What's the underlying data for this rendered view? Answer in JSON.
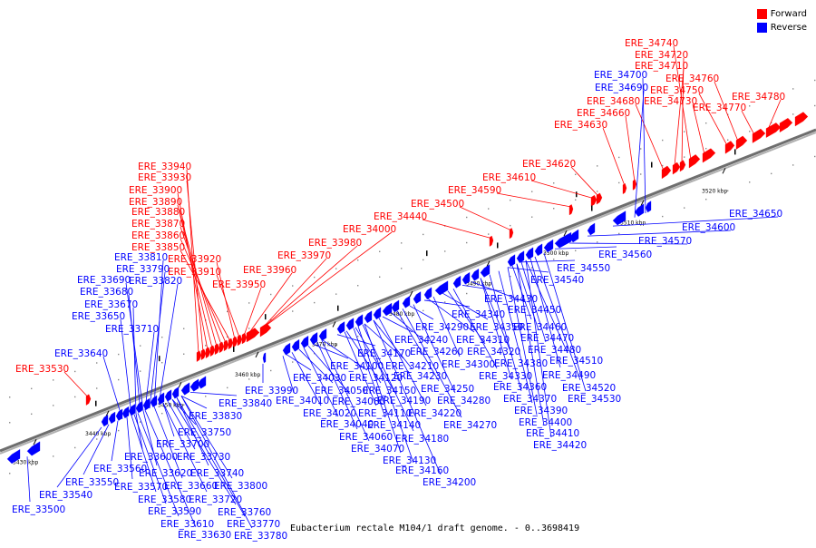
{
  "caption": "Eubacterium rectale M104/1 draft genome. - 0..3698419",
  "legend": [
    {
      "label": "Forward",
      "color": "#ff0000"
    },
    {
      "label": "Reverse",
      "color": "#0000ff"
    }
  ],
  "colors": {
    "forward": "#ff0000",
    "reverse": "#0000ff",
    "forward_leader": "#ff0000",
    "reverse_leader": "#0000ff"
  },
  "ticks": [
    "3430 kbp",
    "3440 kbp",
    "3450 kbp",
    "3460 kbp",
    "3470 kbp",
    "3480 kbp",
    "3490 kbp",
    "3500 kbp",
    "3510 kbp",
    "3520 kbp"
  ],
  "forward_genes": [
    "ERE_33530",
    "ERE_33940",
    "ERE_33930",
    "ERE_33900",
    "ERE_33890",
    "ERE_33880",
    "ERE_33870",
    "ERE_33860",
    "ERE_33850",
    "ERE_33920",
    "ERE_33910",
    "ERE_33950",
    "ERE_33960",
    "ERE_33970",
    "ERE_33980",
    "ERE_34000",
    "ERE_34440",
    "ERE_34500",
    "ERE_34590",
    "ERE_34610",
    "ERE_34620",
    "ERE_34630",
    "ERE_34660",
    "ERE_34680",
    "ERE_34710",
    "ERE_34720",
    "ERE_34740",
    "ERE_34730",
    "ERE_34750",
    "ERE_34760",
    "ERE_34770",
    "ERE_34780"
  ],
  "reverse_genes": [
    "ERE_33640",
    "ERE_33650",
    "ERE_33670",
    "ERE_33680",
    "ERE_33690",
    "ERE_33810",
    "ERE_33790",
    "ERE_33820",
    "ERE_33710",
    "ERE_33840",
    "ERE_33830",
    "ERE_33750",
    "ERE_33700",
    "ERE_33730",
    "ERE_33600",
    "ERE_33560",
    "ERE_33620",
    "ERE_33740",
    "ERE_33550",
    "ERE_33570",
    "ERE_33660",
    "ERE_33800",
    "ERE_33540",
    "ERE_33580",
    "ERE_33720",
    "ERE_33500",
    "ERE_33590",
    "ERE_33760",
    "ERE_33610",
    "ERE_33770",
    "ERE_33630",
    "ERE_33780",
    "ERE_33990",
    "ERE_34030",
    "ERE_34010",
    "ERE_34050",
    "ERE_34020",
    "ERE_34100",
    "ERE_34080",
    "ERE_34040",
    "ERE_34120",
    "ERE_34060",
    "ERE_34070",
    "ERE_34170",
    "ERE_34150",
    "ERE_34110",
    "ERE_34140",
    "ERE_34130",
    "ERE_34160",
    "ERE_34200",
    "ERE_34210",
    "ERE_34190",
    "ERE_34180",
    "ERE_34230",
    "ERE_34220",
    "ERE_34240",
    "ERE_34260",
    "ERE_34250",
    "ERE_34270",
    "ERE_34290",
    "ERE_34280",
    "ERE_34340",
    "ERE_34310",
    "ERE_34300",
    "ERE_34350",
    "ERE_34320",
    "ERE_34330",
    "ERE_34430",
    "ERE_34450",
    "ERE_34360",
    "ERE_34370",
    "ERE_34390",
    "ERE_34400",
    "ERE_34410",
    "ERE_34420",
    "ERE_34380",
    "ERE_34460",
    "ERE_34470",
    "ERE_34480",
    "ERE_34490",
    "ERE_34510",
    "ERE_34520",
    "ERE_34530",
    "ERE_34540",
    "ERE_34550",
    "ERE_34560",
    "ERE_34570",
    "ERE_34600",
    "ERE_34650",
    "ERE_34690",
    "ERE_34700"
  ]
}
